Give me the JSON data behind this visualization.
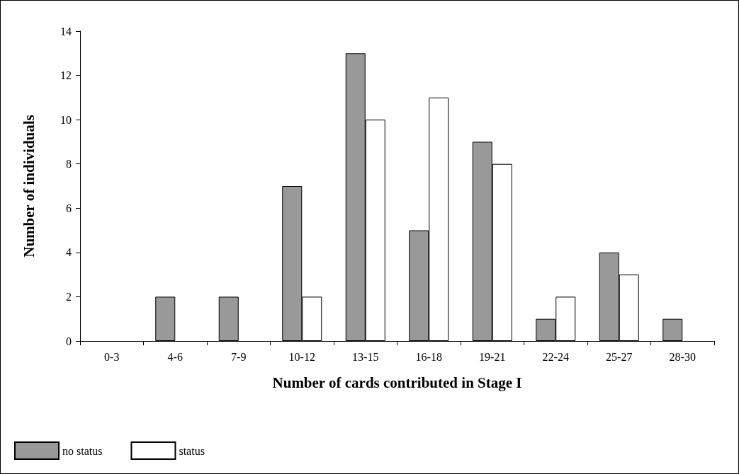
{
  "chart_data": {
    "type": "bar",
    "xlabel": "Number of cards contributed in Stage I",
    "ylabel": "Number of individuals",
    "categories": [
      "0-3",
      "4-6",
      "7-9",
      "10-12",
      "13-15",
      "16-18",
      "19-21",
      "22-24",
      "25-27",
      "28-30"
    ],
    "series": [
      {
        "name": "no status",
        "color": "#999999",
        "values": [
          0,
          2,
          2,
          7,
          13,
          5,
          9,
          1,
          4,
          1
        ]
      },
      {
        "name": "status",
        "color": "#ffffff",
        "values": [
          0,
          0,
          0,
          2,
          10,
          11,
          8,
          2,
          3,
          0
        ]
      }
    ],
    "ylim": [
      0,
      14
    ],
    "yticks": [
      0,
      2,
      4,
      6,
      8,
      10,
      12,
      14
    ],
    "grid": false,
    "legend": "bottom left"
  }
}
